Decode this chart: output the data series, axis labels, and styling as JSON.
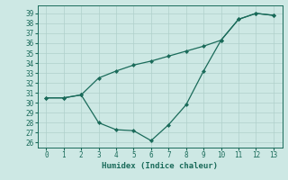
{
  "line1_x": [
    0,
    1,
    2,
    3,
    4,
    5,
    6,
    7,
    8,
    9,
    10,
    11,
    12,
    13
  ],
  "line1_y": [
    30.5,
    30.5,
    30.8,
    28.0,
    27.3,
    27.2,
    26.2,
    27.8,
    29.8,
    33.2,
    36.3,
    38.4,
    39.0,
    38.8
  ],
  "line2_x": [
    0,
    1,
    2,
    3,
    4,
    5,
    6,
    7,
    8,
    9,
    10,
    11,
    12,
    13
  ],
  "line2_y": [
    30.5,
    30.5,
    30.8,
    32.5,
    33.2,
    33.8,
    34.2,
    34.7,
    35.2,
    35.7,
    36.3,
    38.4,
    39.0,
    38.8
  ],
  "line_color": "#1a6b5a",
  "bg_color": "#cde8e4",
  "grid_color": "#b0d0cb",
  "xlabel": "Humidex (Indice chaleur)",
  "xlim": [
    -0.5,
    13.5
  ],
  "ylim": [
    25.5,
    39.8
  ],
  "yticks": [
    26,
    27,
    28,
    29,
    30,
    31,
    32,
    33,
    34,
    35,
    36,
    37,
    38,
    39
  ],
  "xticks": [
    0,
    1,
    2,
    3,
    4,
    5,
    6,
    7,
    8,
    9,
    10,
    11,
    12,
    13
  ],
  "marker": "D",
  "marker_size": 2.0,
  "linewidth": 0.9
}
